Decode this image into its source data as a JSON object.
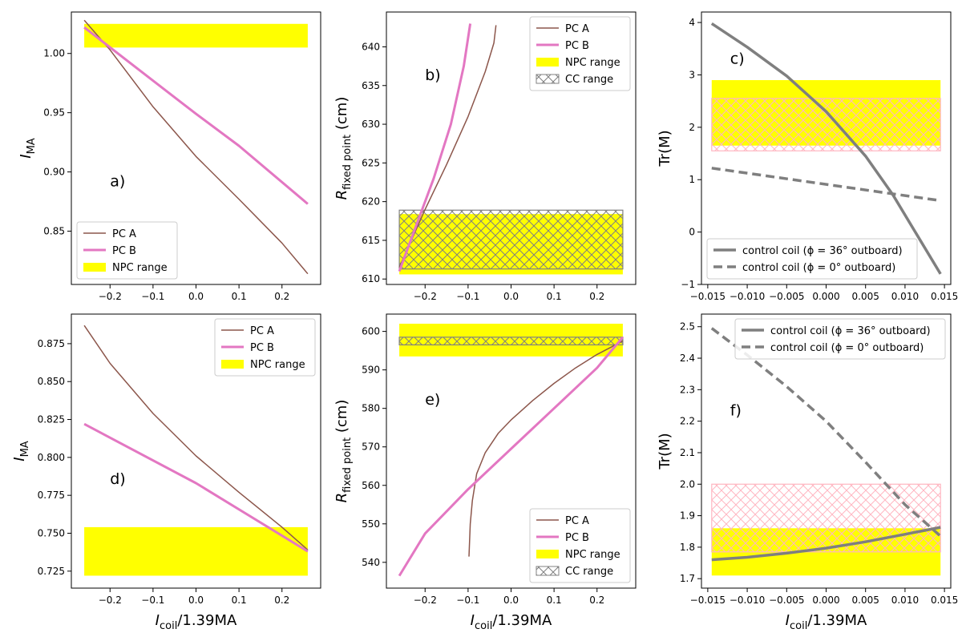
{
  "colors": {
    "pc_a": "#8c564b",
    "pc_b": "#e377c2",
    "npc": "#ffff00",
    "cc": "#808080",
    "cc_pink": "#ffb6c1",
    "control": "#7f7f7f"
  },
  "chart_data": [
    {
      "id": "a",
      "type": "line",
      "panel_label": "a)",
      "xlabel": "",
      "ylabel": "I_MA",
      "xlim": [
        -0.29,
        0.29
      ],
      "ylim": [
        0.805,
        1.035
      ],
      "xticks": [
        -0.2,
        -0.1,
        0.0,
        0.1,
        0.2
      ],
      "xtick_labels": [
        "−0.2",
        "−0.1",
        "0.0",
        "0.1",
        "0.2"
      ],
      "yticks": [
        0.85,
        0.9,
        0.95,
        1.0
      ],
      "ytick_labels": [
        "0.85",
        "0.90",
        "0.95",
        "1.00"
      ],
      "series": [
        {
          "name": "PC A",
          "color": "#8c564b",
          "width": 1.5,
          "dash": "",
          "x": [
            -0.26,
            -0.2,
            -0.1,
            0.0,
            0.1,
            0.2,
            0.26
          ],
          "y": [
            1.028,
            1.003,
            0.955,
            0.913,
            0.877,
            0.84,
            0.814
          ]
        },
        {
          "name": "PC B",
          "color": "#e377c2",
          "width": 3,
          "dash": "",
          "x": [
            -0.26,
            -0.1,
            0.0,
            0.1,
            0.26
          ],
          "y": [
            1.022,
            0.977,
            0.949,
            0.922,
            0.873
          ]
        }
      ],
      "bands": [
        {
          "name": "NPC range",
          "x": [
            -0.26,
            0.26
          ],
          "y": [
            1.005,
            1.025
          ],
          "fill": "#ffff00",
          "hatch": ""
        }
      ],
      "legend": {
        "position": "lower-left",
        "entries": [
          {
            "label": "PC A",
            "kind": "line",
            "color": "#8c564b",
            "width": 1.5,
            "dash": ""
          },
          {
            "label": "PC B",
            "kind": "line",
            "color": "#e377c2",
            "width": 3,
            "dash": ""
          },
          {
            "label": "NPC range",
            "kind": "patch",
            "fill": "#ffff00",
            "stroke": "none",
            "hatch": ""
          }
        ]
      }
    },
    {
      "id": "b",
      "type": "line",
      "panel_label": "b)",
      "xlabel": "",
      "ylabel": "R_(fixed point) (cm)",
      "xlim": [
        -0.29,
        0.29
      ],
      "ylim": [
        609.3,
        644.5
      ],
      "xticks": [
        -0.2,
        -0.1,
        0.0,
        0.1,
        0.2
      ],
      "xtick_labels": [
        "−0.2",
        "−0.1",
        "0.0",
        "0.1",
        "0.2"
      ],
      "yticks": [
        610,
        615,
        620,
        625,
        630,
        635,
        640
      ],
      "ytick_labels": [
        "610",
        "615",
        "620",
        "625",
        "630",
        "635",
        "640"
      ],
      "series": [
        {
          "name": "PC A",
          "color": "#8c564b",
          "width": 1.5,
          "dash": "",
          "x": [
            -0.26,
            -0.2,
            -0.15,
            -0.1,
            -0.06,
            -0.04,
            -0.035
          ],
          "y": [
            611.5,
            619.0,
            624.8,
            631.0,
            636.8,
            640.5,
            642.8
          ]
        },
        {
          "name": "PC B",
          "color": "#e377c2",
          "width": 3,
          "dash": "",
          "x": [
            -0.26,
            -0.22,
            -0.18,
            -0.14,
            -0.11,
            -0.095
          ],
          "y": [
            611.0,
            617.0,
            623.0,
            630.0,
            637.5,
            643.0
          ]
        }
      ],
      "bands": [
        {
          "name": "NPC range",
          "x": [
            -0.26,
            0.26
          ],
          "y": [
            610.6,
            618.4
          ],
          "fill": "#ffff00",
          "hatch": ""
        },
        {
          "name": "CC range",
          "x": [
            -0.26,
            0.26
          ],
          "y": [
            611.3,
            618.9
          ],
          "fill": "none",
          "hatch": "#808080"
        }
      ],
      "legend": {
        "position": "upper-right",
        "entries": [
          {
            "label": "PC A",
            "kind": "line",
            "color": "#8c564b",
            "width": 1.5,
            "dash": ""
          },
          {
            "label": "PC B",
            "kind": "line",
            "color": "#e377c2",
            "width": 3,
            "dash": ""
          },
          {
            "label": "NPC range",
            "kind": "patch",
            "fill": "#ffff00",
            "stroke": "none",
            "hatch": ""
          },
          {
            "label": "CC range",
            "kind": "patch",
            "fill": "none",
            "stroke": "#808080",
            "hatch": "#808080"
          }
        ]
      }
    },
    {
      "id": "c",
      "type": "line",
      "panel_label": "c)",
      "xlabel": "",
      "ylabel": "Tr(M)",
      "xlim": [
        -0.0158,
        0.0158
      ],
      "ylim": [
        -1.0,
        4.2
      ],
      "xticks": [
        -0.015,
        -0.01,
        -0.005,
        0.0,
        0.005,
        0.01,
        0.015
      ],
      "xtick_labels": [
        "−0.015",
        "−0.010",
        "−0.005",
        "0.000",
        "0.005",
        "0.010",
        "0.015"
      ],
      "yticks": [
        -1,
        0,
        1,
        2,
        3,
        4
      ],
      "ytick_labels": [
        "−1",
        "0",
        "1",
        "2",
        "3",
        "4"
      ],
      "series": [
        {
          "name": "control coil (ϕ = 36° outboard)",
          "color": "#7f7f7f",
          "width": 3.5,
          "dash": "",
          "x": [
            -0.0145,
            -0.01,
            -0.005,
            0.0,
            0.005,
            0.0085,
            0.0145
          ],
          "y": [
            3.98,
            3.53,
            2.98,
            2.3,
            1.45,
            0.7,
            -0.8
          ]
        },
        {
          "name": "control coil (ϕ = 0° outboard)",
          "color": "#7f7f7f",
          "width": 3.5,
          "dash": "11,6",
          "x": [
            -0.0145,
            0.0145
          ],
          "y": [
            1.22,
            0.6
          ]
        }
      ],
      "bands": [
        {
          "name": "NPC range",
          "x": [
            -0.0145,
            0.0145
          ],
          "y": [
            1.65,
            2.9
          ],
          "fill": "#ffff00",
          "hatch": ""
        },
        {
          "name": "CC range",
          "x": [
            -0.0145,
            0.0145
          ],
          "y": [
            1.55,
            2.55
          ],
          "fill": "none",
          "hatch": "#ffb6c1"
        }
      ],
      "legend": {
        "position": "lower-left",
        "entries": [
          {
            "label": "control coil (ϕ = 36° outboard)",
            "kind": "line",
            "color": "#7f7f7f",
            "width": 3.5,
            "dash": ""
          },
          {
            "label": "control coil (ϕ = 0° outboard)",
            "kind": "line",
            "color": "#7f7f7f",
            "width": 3.5,
            "dash": "11,6"
          }
        ]
      }
    },
    {
      "id": "d",
      "type": "line",
      "panel_label": "d)",
      "xlabel": "I_coil/1.39MA",
      "ylabel": "I_MA",
      "xlim": [
        -0.29,
        0.29
      ],
      "ylim": [
        0.7138,
        0.8945
      ],
      "xticks": [
        -0.2,
        -0.1,
        0.0,
        0.1,
        0.2
      ],
      "xtick_labels": [
        "−0.2",
        "−0.1",
        "0.0",
        "0.1",
        "0.2"
      ],
      "yticks": [
        0.725,
        0.75,
        0.775,
        0.8,
        0.825,
        0.85,
        0.875
      ],
      "ytick_labels": [
        "0.725",
        "0.750",
        "0.775",
        "0.800",
        "0.825",
        "0.850",
        "0.875"
      ],
      "series": [
        {
          "name": "PC A",
          "color": "#8c564b",
          "width": 1.5,
          "dash": "",
          "x": [
            -0.26,
            -0.2,
            -0.1,
            0.0,
            0.1,
            0.2,
            0.26
          ],
          "y": [
            0.887,
            0.862,
            0.829,
            0.801,
            0.777,
            0.754,
            0.739
          ]
        },
        {
          "name": "PC B",
          "color": "#e377c2",
          "width": 3,
          "dash": "",
          "x": [
            -0.26,
            0.0,
            0.26
          ],
          "y": [
            0.822,
            0.783,
            0.738
          ]
        }
      ],
      "bands": [
        {
          "name": "NPC range",
          "x": [
            -0.26,
            0.26
          ],
          "y": [
            0.722,
            0.754
          ],
          "fill": "#ffff00",
          "hatch": ""
        }
      ],
      "legend": {
        "position": "upper-right",
        "entries": [
          {
            "label": "PC A",
            "kind": "line",
            "color": "#8c564b",
            "width": 1.5,
            "dash": ""
          },
          {
            "label": "PC B",
            "kind": "line",
            "color": "#e377c2",
            "width": 3,
            "dash": ""
          },
          {
            "label": "NPC range",
            "kind": "patch",
            "fill": "#ffff00",
            "stroke": "none",
            "hatch": ""
          }
        ]
      }
    },
    {
      "id": "e",
      "type": "line",
      "panel_label": "e)",
      "xlabel": "I_coil/1.39MA",
      "ylabel": "R_(fixed point) (cm)",
      "xlim": [
        -0.29,
        0.29
      ],
      "ylim": [
        533.3,
        604.5
      ],
      "xticks": [
        -0.2,
        -0.1,
        0.0,
        0.1,
        0.2
      ],
      "xtick_labels": [
        "−0.2",
        "−0.1",
        "0.0",
        "0.1",
        "0.2"
      ],
      "yticks": [
        540,
        550,
        560,
        570,
        580,
        590,
        600
      ],
      "ytick_labels": [
        "540",
        "550",
        "560",
        "570",
        "580",
        "590",
        "600"
      ],
      "series": [
        {
          "name": "PC A",
          "color": "#8c564b",
          "width": 1.5,
          "dash": "",
          "x": [
            -0.098,
            -0.095,
            -0.09,
            -0.08,
            -0.06,
            -0.03,
            0.0,
            0.05,
            0.1,
            0.15,
            0.2,
            0.26
          ],
          "y": [
            541.5,
            550,
            556,
            563,
            568.5,
            573.5,
            577,
            582,
            586.5,
            590.5,
            594,
            597.5
          ]
        },
        {
          "name": "PC B",
          "color": "#e377c2",
          "width": 3,
          "dash": "",
          "x": [
            -0.26,
            -0.2,
            -0.1,
            0.0,
            0.1,
            0.2,
            0.26
          ],
          "y": [
            536.5,
            547.5,
            559,
            569.5,
            580,
            590.5,
            598.5
          ]
        }
      ],
      "bands": [
        {
          "name": "NPC range",
          "x": [
            -0.26,
            0.26
          ],
          "y": [
            593.5,
            602
          ],
          "fill": "#ffff00",
          "hatch": ""
        },
        {
          "name": "CC range",
          "x": [
            -0.26,
            0.26
          ],
          "y": [
            596.5,
            598.5
          ],
          "fill": "none",
          "hatch": "#808080"
        }
      ],
      "legend": {
        "position": "lower-right",
        "entries": [
          {
            "label": "PC A",
            "kind": "line",
            "color": "#8c564b",
            "width": 1.5,
            "dash": ""
          },
          {
            "label": "PC B",
            "kind": "line",
            "color": "#e377c2",
            "width": 3,
            "dash": ""
          },
          {
            "label": "NPC range",
            "kind": "patch",
            "fill": "#ffff00",
            "stroke": "none",
            "hatch": ""
          },
          {
            "label": "CC range",
            "kind": "patch",
            "fill": "none",
            "stroke": "#808080",
            "hatch": "#808080"
          }
        ]
      }
    },
    {
      "id": "f",
      "type": "line",
      "panel_label": "f)",
      "xlabel": "I_coil/1.39MA",
      "ylabel": "Tr(M)",
      "xlim": [
        -0.0158,
        0.0158
      ],
      "ylim": [
        1.67,
        2.54
      ],
      "xticks": [
        -0.015,
        -0.01,
        -0.005,
        0.0,
        0.005,
        0.01,
        0.015
      ],
      "xtick_labels": [
        "−0.015",
        "−0.010",
        "−0.005",
        "0.000",
        "0.005",
        "0.010",
        "0.015"
      ],
      "yticks": [
        1.7,
        1.8,
        1.9,
        2.0,
        2.1,
        2.2,
        2.3,
        2.4,
        2.5
      ],
      "ytick_labels": [
        "1.7",
        "1.8",
        "1.9",
        "2.0",
        "2.1",
        "2.2",
        "2.3",
        "2.4",
        "2.5"
      ],
      "series": [
        {
          "name": "control coil (ϕ = 36° outboard)",
          "color": "#7f7f7f",
          "width": 3.5,
          "dash": "",
          "x": [
            -0.0145,
            -0.01,
            -0.005,
            0.0,
            0.005,
            0.01,
            0.0145
          ],
          "y": [
            1.76,
            1.768,
            1.781,
            1.797,
            1.817,
            1.841,
            1.863
          ]
        },
        {
          "name": "control coil (ϕ = 0° outboard)",
          "color": "#7f7f7f",
          "width": 3.5,
          "dash": "11,6",
          "x": [
            -0.0145,
            -0.01,
            -0.005,
            0.0,
            0.005,
            0.01,
            0.0145
          ],
          "y": [
            2.495,
            2.41,
            2.31,
            2.2,
            2.07,
            1.935,
            1.835
          ]
        }
      ],
      "bands": [
        {
          "name": "NPC range",
          "x": [
            -0.0145,
            0.0145
          ],
          "y": [
            1.71,
            1.86
          ],
          "fill": "#ffff00",
          "hatch": ""
        },
        {
          "name": "CC range",
          "x": [
            -0.0145,
            0.0145
          ],
          "y": [
            1.785,
            2.0
          ],
          "fill": "none",
          "hatch": "#ffb6c1"
        }
      ],
      "legend": {
        "position": "upper-right",
        "entries": [
          {
            "label": "control coil (ϕ = 36° outboard)",
            "kind": "line",
            "color": "#7f7f7f",
            "width": 3.5,
            "dash": ""
          },
          {
            "label": "control coil (ϕ = 0° outboard)",
            "kind": "line",
            "color": "#7f7f7f",
            "width": 3.5,
            "dash": "11,6"
          }
        ]
      }
    }
  ]
}
